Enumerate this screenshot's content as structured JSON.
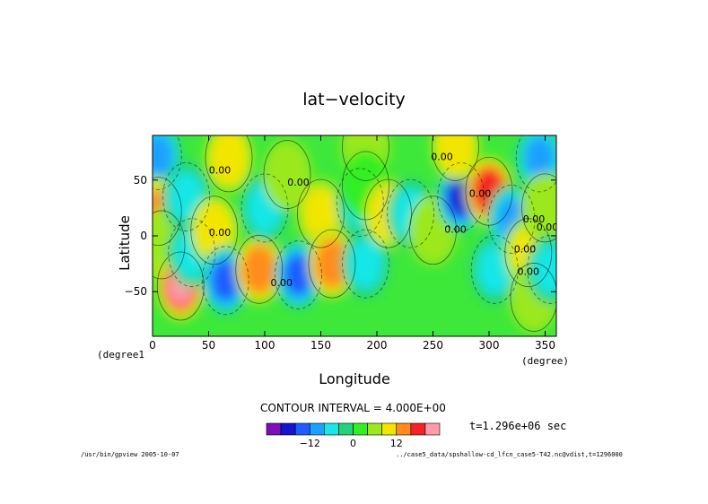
{
  "chart_data": {
    "type": "heatmap",
    "title": "lat−velocity",
    "xlabel": "Longitude",
    "ylabel": "Latitude",
    "x_unit": "(degree)",
    "y_unit": "(degree1",
    "xlim": [
      0,
      360
    ],
    "ylim": [
      -90,
      90
    ],
    "x_ticks": [
      "0",
      "50",
      "100",
      "150",
      "200",
      "250",
      "300",
      "350"
    ],
    "y_ticks": [
      "50",
      "0",
      "−50"
    ],
    "contour_labels": [
      "0.00",
      "0.00",
      "0.00",
      "0.00",
      "0.00",
      "0.00",
      "0.00",
      "0.00",
      "0.00",
      "0.00",
      "0.00"
    ],
    "colorbar_ticks": [
      "−12",
      "0",
      "12"
    ],
    "colorbar_levels": [
      -20,
      -16,
      -12,
      -8,
      -4,
      0,
      4,
      8,
      12,
      16,
      20
    ],
    "colorbar_colors": [
      "#7b0fb8",
      "#1414d2",
      "#1e5cff",
      "#1aa0ff",
      "#19e6e6",
      "#20d278",
      "#33ee22",
      "#9be81e",
      "#f2e600",
      "#ff8c1a",
      "#f52323",
      "#ff9aaa"
    ],
    "contour_interval": "CONTOUR INTERVAL = 4.000E+00",
    "time": "t=1.296e+06 sec",
    "background_color": "#3ee83a",
    "grid": false,
    "cells": [
      {
        "lon": 5,
        "lat": 72,
        "v": -10
      },
      {
        "lon": 5,
        "lat": 22,
        "v": 12
      },
      {
        "lon": 8,
        "lat": -8,
        "v": 4
      },
      {
        "lon": 25,
        "lat": -45,
        "v": 20
      },
      {
        "lon": 30,
        "lat": 35,
        "v": -6
      },
      {
        "lon": 35,
        "lat": -15,
        "v": -5
      },
      {
        "lon": 55,
        "lat": 5,
        "v": 9
      },
      {
        "lon": 65,
        "lat": -40,
        "v": -16
      },
      {
        "lon": 68,
        "lat": 70,
        "v": 9
      },
      {
        "lon": 95,
        "lat": -30,
        "v": 14
      },
      {
        "lon": 100,
        "lat": 25,
        "v": -5
      },
      {
        "lon": 120,
        "lat": 55,
        "v": 6
      },
      {
        "lon": 130,
        "lat": -35,
        "v": -13
      },
      {
        "lon": 150,
        "lat": 20,
        "v": 8
      },
      {
        "lon": 160,
        "lat": -25,
        "v": 14
      },
      {
        "lon": 185,
        "lat": 30,
        "v": -5
      },
      {
        "lon": 190,
        "lat": -25,
        "v": -8
      },
      {
        "lon": 190,
        "lat": 80,
        "v": 5
      },
      {
        "lon": 190,
        "lat": 45,
        "v": 3
      },
      {
        "lon": 210,
        "lat": 20,
        "v": 11
      },
      {
        "lon": 230,
        "lat": 20,
        "v": -6
      },
      {
        "lon": 250,
        "lat": 5,
        "v": 5
      },
      {
        "lon": 275,
        "lat": 35,
        "v": -18
      },
      {
        "lon": 270,
        "lat": 80,
        "v": 10
      },
      {
        "lon": 300,
        "lat": 40,
        "v": 18
      },
      {
        "lon": 305,
        "lat": -30,
        "v": -8
      },
      {
        "lon": 320,
        "lat": 15,
        "v": -12
      },
      {
        "lon": 335,
        "lat": -15,
        "v": 8
      },
      {
        "lon": 340,
        "lat": -55,
        "v": 7
      },
      {
        "lon": 345,
        "lat": 70,
        "v": -11
      },
      {
        "lon": 350,
        "lat": 25,
        "v": 4
      },
      {
        "lon": 355,
        "lat": -30,
        "v": -6
      }
    ]
  },
  "footer": {
    "left": "/usr/bin/gpview  2005-10-07",
    "right": "../case5_data/spshallow-cd_lfcn_case5-T42.nc@vdist,t=1296000"
  }
}
